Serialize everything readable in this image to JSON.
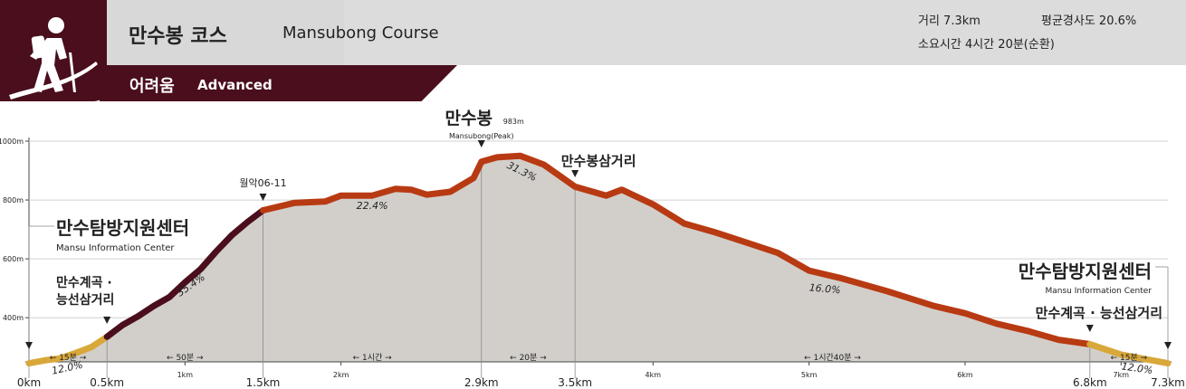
{
  "header": {
    "title_ko": "만수봉 코스",
    "title_en": "Mansubong Course",
    "level_ko": "어려움",
    "level_en": "Advanced",
    "icon": "hiker-icon",
    "distance": "거리 7.3km",
    "avg_slope": "평균경사도 20.6%",
    "duration": "소요시간 4시간 20분(순환)"
  },
  "colors": {
    "badge": "#4a0e1d",
    "header_band": "#dcdcdc",
    "profile_fill": "#d2cfcb",
    "easy": "#d9a83a",
    "hard": "#4a0e1d",
    "medium": "#b83a12"
  },
  "chart_data": {
    "type": "area",
    "x_unit": "km",
    "y_unit": "m",
    "ylim": [
      250,
      1050
    ],
    "xlim": [
      0,
      7.3
    ],
    "y_ticks": [
      {
        "value": 400,
        "label": "400m"
      },
      {
        "value": 600,
        "label": "600m"
      },
      {
        "value": 800,
        "label": "800m"
      },
      {
        "value": 1000,
        "label": "1000m"
      }
    ],
    "x_ticks_major": [
      {
        "value": 0,
        "label": "0km"
      },
      {
        "value": 0.5,
        "label": "0.5km"
      },
      {
        "value": 1.5,
        "label": "1.5km"
      },
      {
        "value": 2.9,
        "label": "2.9km"
      },
      {
        "value": 3.5,
        "label": "3.5km"
      },
      {
        "value": 6.8,
        "label": "6.8km"
      },
      {
        "value": 7.3,
        "label": "7.3km"
      }
    ],
    "x_ticks_minor": [
      {
        "value": 1,
        "label": "1km"
      },
      {
        "value": 2,
        "label": "2km"
      },
      {
        "value": 4,
        "label": "4km"
      },
      {
        "value": 5,
        "label": "5km"
      },
      {
        "value": 6,
        "label": "6km"
      },
      {
        "value": 7,
        "label": "7km"
      }
    ],
    "profile": [
      [
        0,
        245
      ],
      [
        0.1,
        255
      ],
      [
        0.2,
        262
      ],
      [
        0.3,
        280
      ],
      [
        0.4,
        300
      ],
      [
        0.5,
        335
      ],
      [
        0.6,
        375
      ],
      [
        0.7,
        405
      ],
      [
        0.8,
        440
      ],
      [
        0.9,
        470
      ],
      [
        1.0,
        520
      ],
      [
        1.1,
        565
      ],
      [
        1.2,
        625
      ],
      [
        1.3,
        680
      ],
      [
        1.4,
        725
      ],
      [
        1.5,
        765
      ],
      [
        1.7,
        790
      ],
      [
        1.9,
        795
      ],
      [
        2.0,
        815
      ],
      [
        2.2,
        815
      ],
      [
        2.35,
        838
      ],
      [
        2.45,
        835
      ],
      [
        2.55,
        818
      ],
      [
        2.7,
        828
      ],
      [
        2.85,
        875
      ],
      [
        2.9,
        930
      ],
      [
        3.0,
        945
      ],
      [
        3.15,
        950
      ],
      [
        3.3,
        920
      ],
      [
        3.5,
        845
      ],
      [
        3.7,
        815
      ],
      [
        3.8,
        835
      ],
      [
        4.0,
        785
      ],
      [
        4.2,
        720
      ],
      [
        4.4,
        690
      ],
      [
        4.6,
        655
      ],
      [
        4.8,
        620
      ],
      [
        5.0,
        560
      ],
      [
        5.2,
        535
      ],
      [
        5.5,
        490
      ],
      [
        5.8,
        440
      ],
      [
        6.0,
        415
      ],
      [
        6.2,
        380
      ],
      [
        6.4,
        355
      ],
      [
        6.6,
        325
      ],
      [
        6.8,
        310
      ],
      [
        7.0,
        275
      ],
      [
        7.3,
        245
      ]
    ],
    "segments": [
      {
        "from": 0,
        "to": 0.5,
        "grade": "easy"
      },
      {
        "from": 0.5,
        "to": 1.5,
        "grade": "hard"
      },
      {
        "from": 1.5,
        "to": 6.8,
        "grade": "medium"
      },
      {
        "from": 6.8,
        "to": 7.3,
        "grade": "easy"
      }
    ],
    "guides": [
      0.5,
      1.5,
      2.9,
      3.5,
      6.8
    ],
    "slopes": [
      {
        "x": 0.25,
        "y": 262,
        "label": "12.0%",
        "angle": -12
      },
      {
        "x": 1.05,
        "y": 545,
        "label": "35.4%",
        "angle": -35
      },
      {
        "x": 2.2,
        "y": 812,
        "label": "22.4%",
        "angle": 0
      },
      {
        "x": 3.15,
        "y": 930,
        "label": "31.3%",
        "angle": 26
      },
      {
        "x": 5.1,
        "y": 530,
        "label": "16.0%",
        "angle": 5
      },
      {
        "x": 7.1,
        "y": 260,
        "label": "12.0%",
        "angle": 8
      }
    ],
    "durations": [
      {
        "from": 0,
        "to": 0.5,
        "label": "← 15분 →"
      },
      {
        "from": 0.5,
        "to": 1.5,
        "label": "← 50분 →"
      },
      {
        "from": 1.5,
        "to": 2.9,
        "label": "← 1시간 →"
      },
      {
        "from": 2.9,
        "to": 3.5,
        "label": "← 20분 →"
      },
      {
        "from": 3.5,
        "to": 6.8,
        "label": "← 1시간40분 →"
      },
      {
        "from": 6.8,
        "to": 7.3,
        "label": "← 15분 →"
      }
    ],
    "waypoints": [
      {
        "x": 0,
        "name": "만수탐방지원센터",
        "sub": "Mansu Information Center",
        "align": "left"
      },
      {
        "x": 0.5,
        "name": "만수계곡 ·",
        "name2": "능선삼거리",
        "align": "left"
      },
      {
        "x": 1.5,
        "name": "월악06-11",
        "align": "center"
      },
      {
        "x": 2.9,
        "name": "만수봉",
        "elev": "983m",
        "sub": "Mansubong(Peak)",
        "align": "center"
      },
      {
        "x": 3.5,
        "name": "만수봉삼거리",
        "align": "center"
      },
      {
        "x": 6.8,
        "name": "만수계곡 · 능선삼거리",
        "align": "center"
      },
      {
        "x": 7.3,
        "name": "만수탐방지원센터",
        "sub": "Mansu Information Center",
        "align": "right"
      }
    ]
  }
}
